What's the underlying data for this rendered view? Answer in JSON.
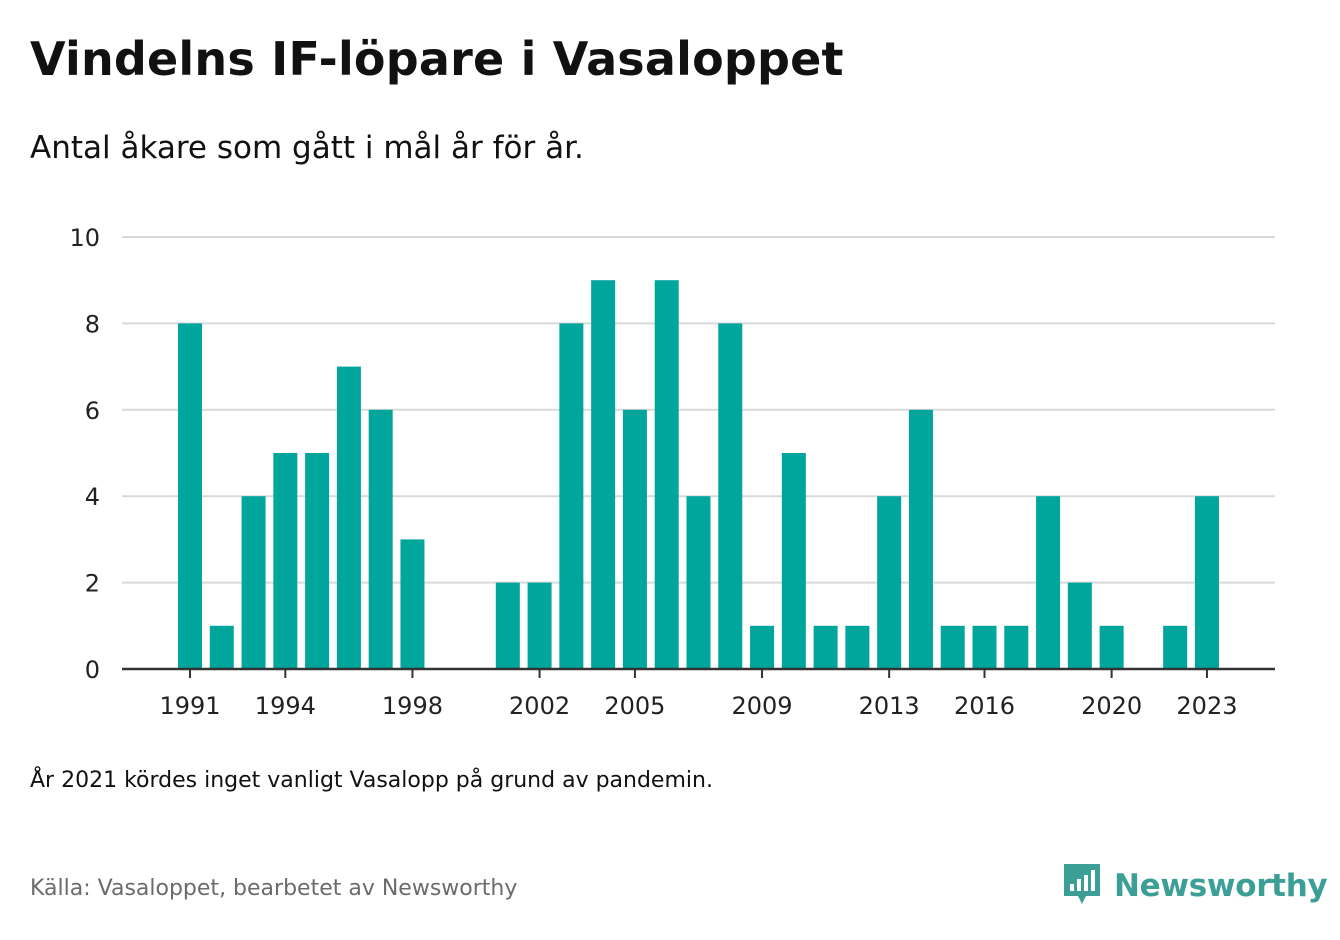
{
  "header": {
    "title": "Vindelns IF-löpare i Vasaloppet",
    "subtitle": "Antal åkare som gått i mål år för år."
  },
  "footer": {
    "note": "År 2021 kördes inget vanligt Vasalopp på grund av pandemin.",
    "source": "Källa: Vasaloppet, bearbetet av Newsworthy",
    "brand": "Newsworthy"
  },
  "colors": {
    "bar": "#00a59b",
    "grid": "#d9d9d9",
    "axis": "#333333",
    "brand": "#3c9f95"
  },
  "chart_data": {
    "type": "bar",
    "title": "Vindelns IF-löpare i Vasaloppet",
    "subtitle": "Antal åkare som gått i mål år för år.",
    "xlabel": "",
    "ylabel": "",
    "ylim": [
      0,
      10
    ],
    "yticks": [
      0,
      2,
      4,
      6,
      8,
      10
    ],
    "xticks": [
      1991,
      1994,
      1998,
      2002,
      2005,
      2009,
      2013,
      2016,
      2020,
      2023
    ],
    "grid": true,
    "legend": "none",
    "x": [
      1991,
      1992,
      1993,
      1994,
      1995,
      1996,
      1997,
      1998,
      1999,
      2000,
      2001,
      2002,
      2003,
      2004,
      2005,
      2006,
      2007,
      2008,
      2009,
      2010,
      2011,
      2012,
      2013,
      2014,
      2015,
      2016,
      2017,
      2018,
      2019,
      2020,
      2021,
      2022,
      2023
    ],
    "values": [
      8,
      1,
      4,
      5,
      5,
      7,
      6,
      3,
      0,
      0,
      2,
      2,
      8,
      9,
      6,
      9,
      4,
      8,
      1,
      5,
      1,
      1,
      4,
      6,
      1,
      1,
      1,
      4,
      2,
      1,
      0,
      1,
      4
    ]
  }
}
